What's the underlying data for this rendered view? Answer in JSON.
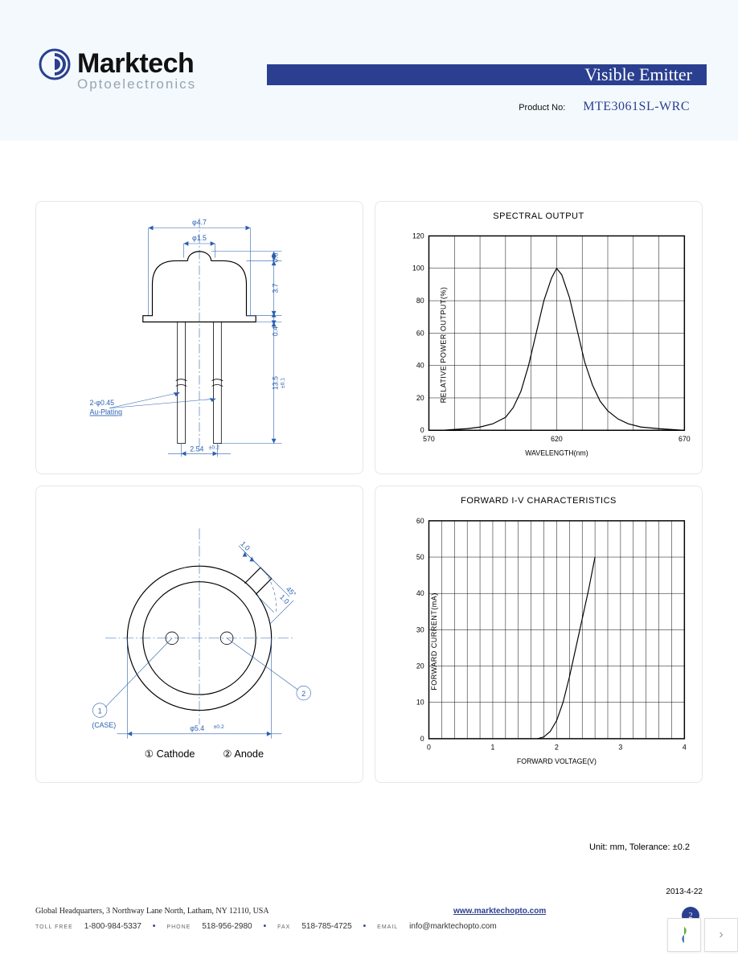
{
  "header": {
    "company_name": "Marktech",
    "company_sub": "Optoelectronics",
    "category": "Visible Emitter",
    "product_label": "Product No:",
    "product_no": "MTE3061SL-WRC",
    "logo_color": "#2a3f8f"
  },
  "drawing_side": {
    "dims": {
      "outer_diameter": "φ4.7",
      "lens_diameter": "φ1.5",
      "lens_height": "0.6",
      "body_height": "3.7",
      "flange_height": "0.4",
      "lead_length": "13.5",
      "lead_tol": "±0.1",
      "lead_spacing": "2.54",
      "spacing_tol": "±0.2",
      "lead_note_line1": "2-φ0.45",
      "lead_note_line2": "Au-Plating"
    },
    "color": "#2a5fb0"
  },
  "drawing_bottom": {
    "dims": {
      "base_diameter": "φ5.4",
      "base_tol": "±0.2",
      "tab_w": "1.0",
      "tab_h": "1.0",
      "tab_angle": "45°"
    },
    "pin1_label": "1",
    "pin2_label": "2",
    "case_label": "(CASE)",
    "legend_1": "① Cathode",
    "legend_2": "② Anode",
    "color": "#2a5fb0"
  },
  "chart_spectral": {
    "type": "line",
    "title": "SPECTRAL OUTPUT",
    "xlabel": "WAVELENGTH(nm)",
    "ylabel": "RELATIVE POWER OUTPUT(%)",
    "xlim": [
      570,
      670
    ],
    "ylim": [
      0,
      120
    ],
    "xticks": [
      570,
      620,
      670
    ],
    "yticks": [
      0,
      20,
      40,
      60,
      80,
      100,
      120
    ],
    "grid_color": "#000000",
    "grid_width": 0.5,
    "border_width": 1.5,
    "line_color": "#000000",
    "line_width": 1.2,
    "background_color": "#ffffff",
    "data": [
      [
        570,
        0
      ],
      [
        575,
        0
      ],
      [
        580,
        0.5
      ],
      [
        585,
        1
      ],
      [
        590,
        2
      ],
      [
        595,
        4
      ],
      [
        600,
        8
      ],
      [
        603,
        14
      ],
      [
        606,
        24
      ],
      [
        609,
        40
      ],
      [
        612,
        60
      ],
      [
        615,
        80
      ],
      [
        618,
        94
      ],
      [
        620,
        100
      ],
      [
        622,
        96
      ],
      [
        625,
        82
      ],
      [
        628,
        62
      ],
      [
        631,
        42
      ],
      [
        634,
        28
      ],
      [
        637,
        18
      ],
      [
        640,
        12
      ],
      [
        644,
        7
      ],
      [
        648,
        4
      ],
      [
        653,
        2
      ],
      [
        660,
        1
      ],
      [
        670,
        0
      ]
    ]
  },
  "chart_iv": {
    "type": "line",
    "title": "FORWARD I-V CHARACTERISTICS",
    "xlabel": "FORWARD VOLTAGE(V)",
    "ylabel": "FORWARD CURRENT(mA)",
    "xlim": [
      0,
      4
    ],
    "ylim": [
      0,
      60
    ],
    "xticks": [
      0,
      1,
      2,
      3,
      4
    ],
    "yticks": [
      0,
      10,
      20,
      30,
      40,
      50,
      60
    ],
    "grid_color": "#000000",
    "grid_width": 0.5,
    "border_width": 1.5,
    "line_color": "#000000",
    "line_width": 1.2,
    "background_color": "#ffffff",
    "data": [
      [
        1.7,
        0
      ],
      [
        1.8,
        0.5
      ],
      [
        1.9,
        2
      ],
      [
        2.0,
        5
      ],
      [
        2.1,
        10
      ],
      [
        2.2,
        17
      ],
      [
        2.3,
        25
      ],
      [
        2.4,
        33
      ],
      [
        2.5,
        41
      ],
      [
        2.6,
        50
      ]
    ]
  },
  "note": "Unit: mm, Tolerance: ±0.2",
  "date": "2013-4-22",
  "footer": {
    "address": "Global Headquarters, 3 Northway Lane North, Latham, NY 12110, USA",
    "tollfree_label": "TOLL FREE",
    "tollfree": "1-800-984-5337",
    "phone_label": "PHONE",
    "phone": "518-956-2980",
    "fax_label": "FAX",
    "fax": "518-785-4725",
    "email_label": "EMAIL",
    "email": "info@marktechopto.com",
    "website": "www.marktechopto.com",
    "page_number": "2",
    "sep_color": "#2a3f8f"
  },
  "widget": {
    "arrow": "›"
  }
}
